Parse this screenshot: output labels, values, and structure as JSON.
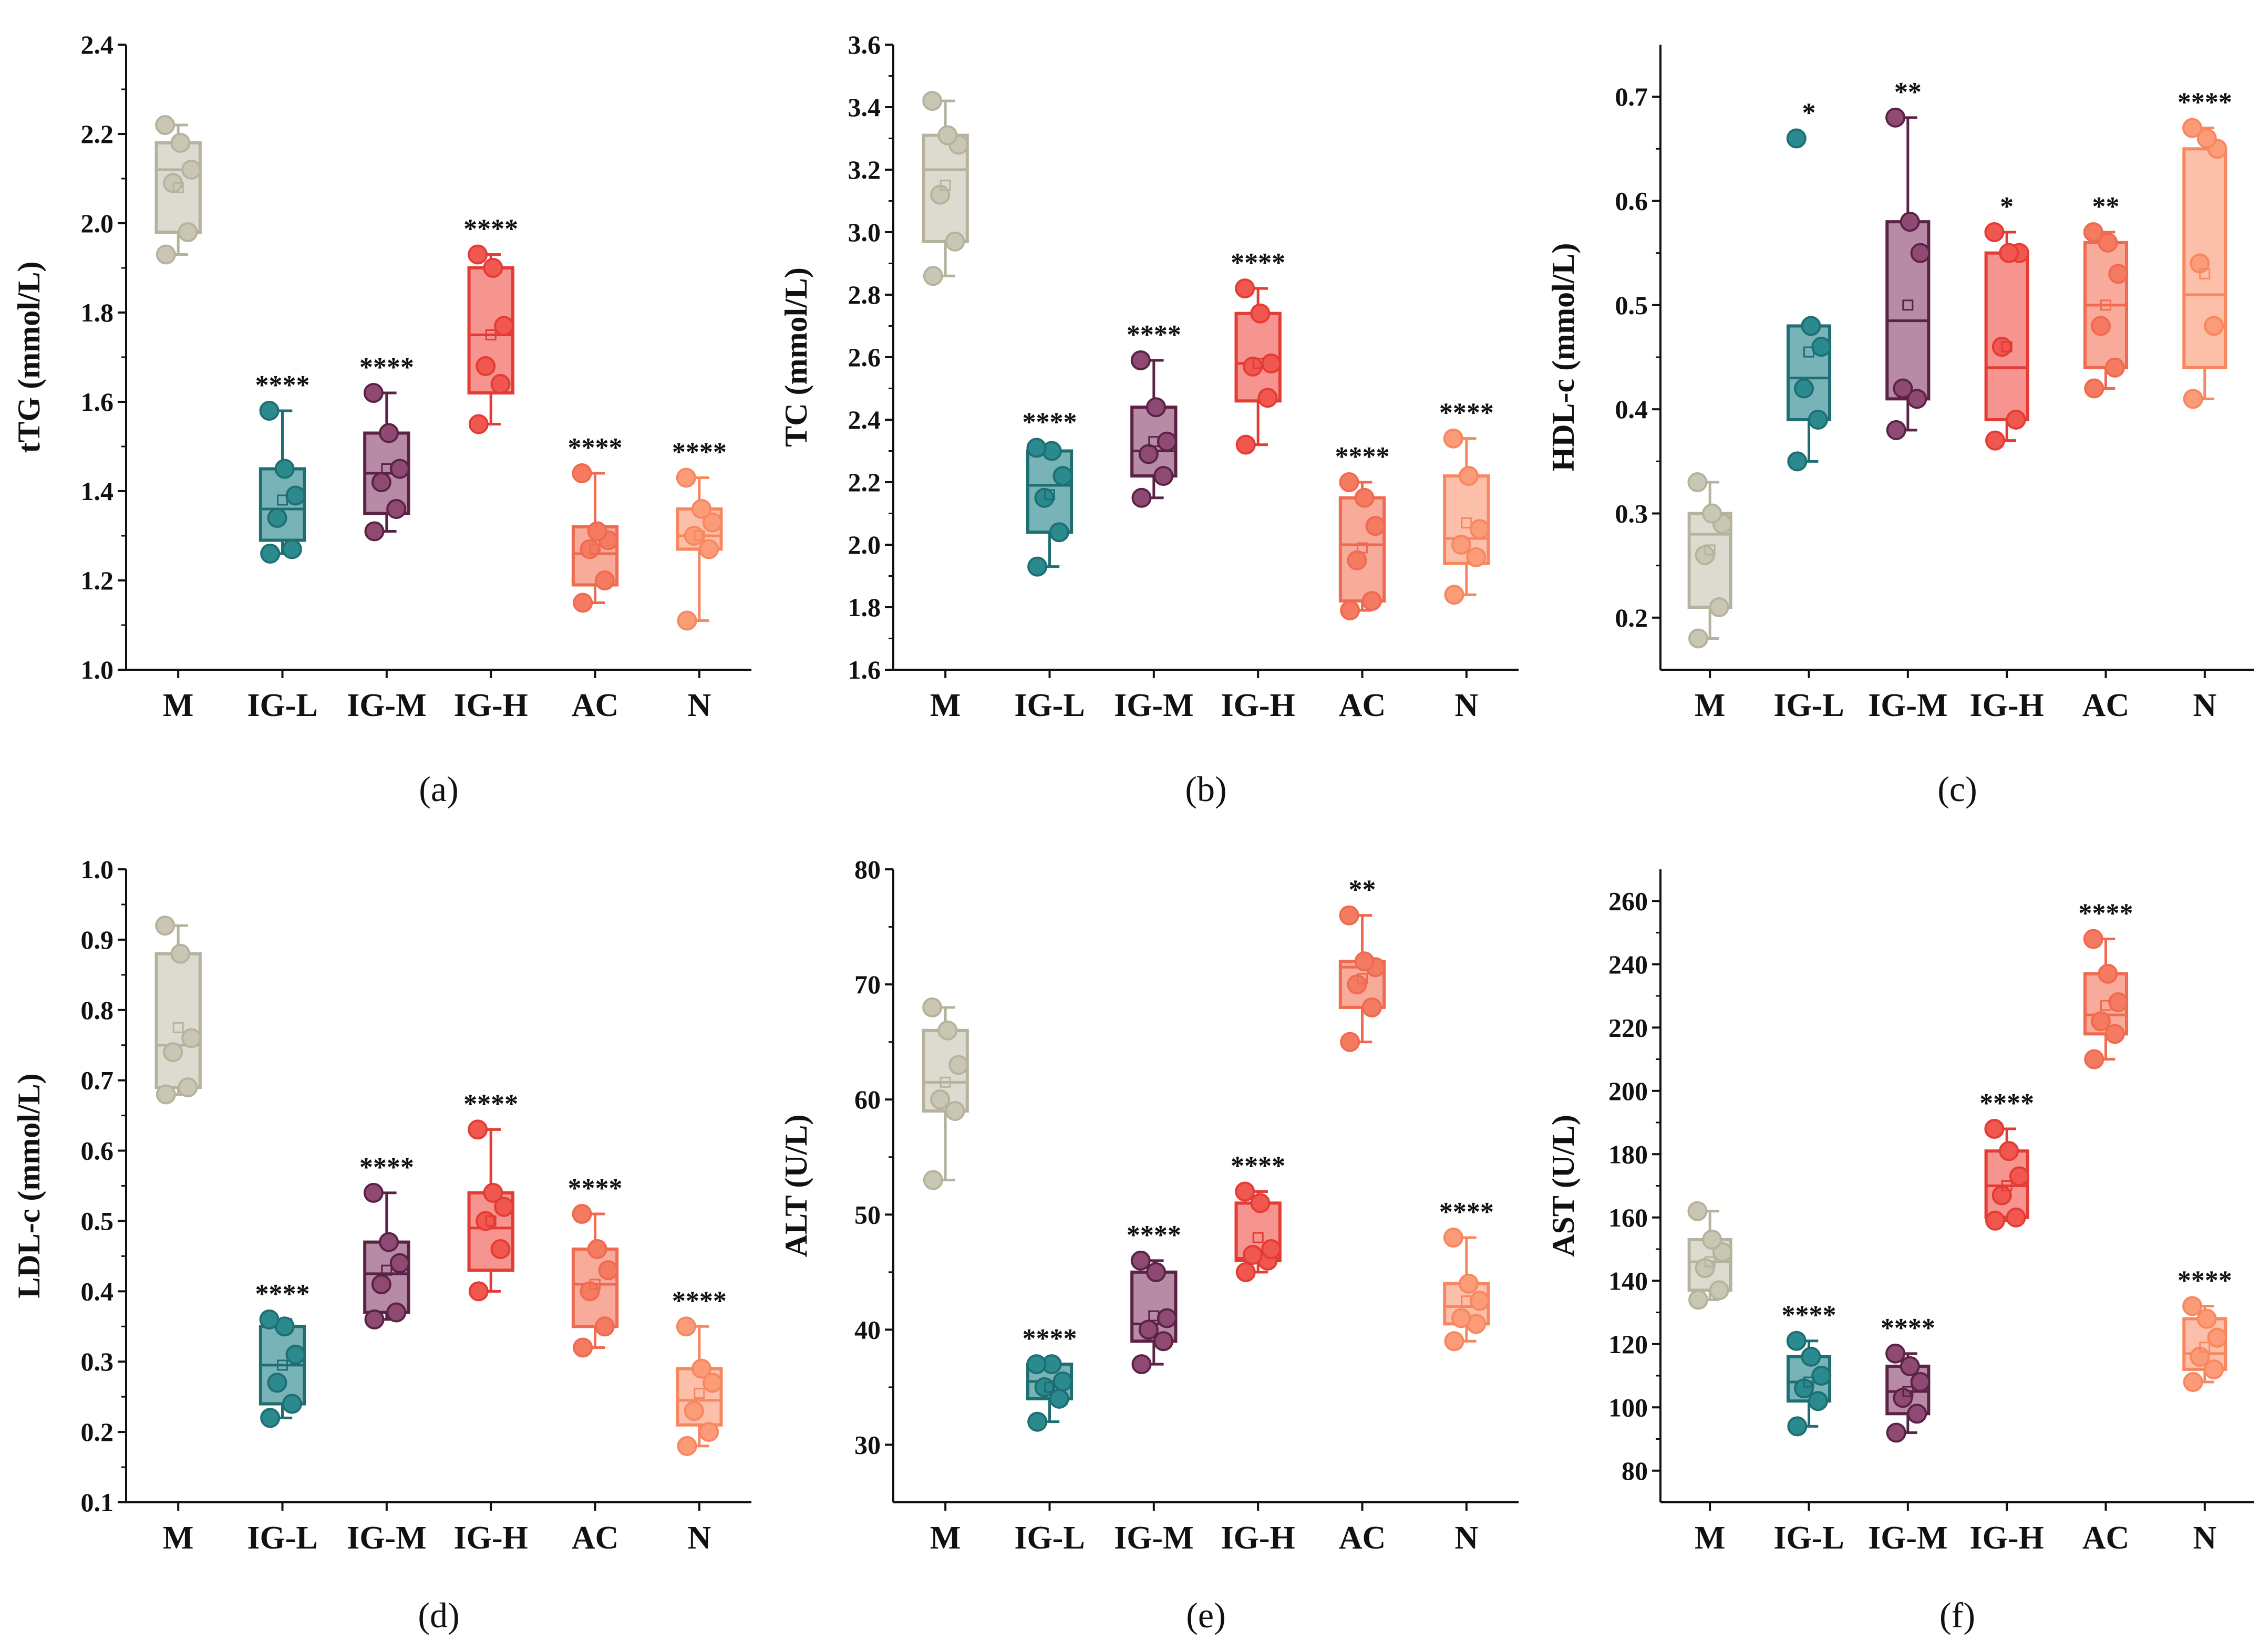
{
  "chart_data": [
    {
      "type": "box",
      "panel_label": "a",
      "caption": "(a)",
      "ylabel": "tTG (mmol/L)",
      "ylim": [
        1.0,
        2.4
      ],
      "yticks": [
        1.0,
        1.2,
        1.4,
        1.6,
        1.8,
        2.0,
        2.2,
        2.4
      ],
      "ytick_labels": [
        "1.0",
        "1.2",
        "1.4",
        "1.6",
        "1.8",
        "2.0",
        "2.2",
        "2.4"
      ],
      "categories": [
        "M",
        "IG-L",
        "IG-M",
        "IG-H",
        "AC",
        "N"
      ],
      "groups": [
        {
          "name": "M",
          "whisker_low": 1.93,
          "q1": 1.98,
          "median": 2.12,
          "q3": 2.18,
          "whisker_high": 2.22,
          "mean": 2.08,
          "points": [
            1.93,
            1.98,
            2.09,
            2.12,
            2.18,
            2.22
          ],
          "sig": ""
        },
        {
          "name": "IG-L",
          "whisker_low": 1.26,
          "q1": 1.29,
          "median": 1.36,
          "q3": 1.45,
          "whisker_high": 1.58,
          "mean": 1.38,
          "points": [
            1.26,
            1.27,
            1.34,
            1.39,
            1.45,
            1.58
          ],
          "sig": "****"
        },
        {
          "name": "IG-M",
          "whisker_low": 1.31,
          "q1": 1.35,
          "median": 1.44,
          "q3": 1.53,
          "whisker_high": 1.62,
          "mean": 1.45,
          "points": [
            1.31,
            1.36,
            1.42,
            1.45,
            1.53,
            1.62
          ],
          "sig": "****"
        },
        {
          "name": "IG-H",
          "whisker_low": 1.55,
          "q1": 1.62,
          "median": 1.75,
          "q3": 1.9,
          "whisker_high": 1.93,
          "mean": 1.75,
          "points": [
            1.55,
            1.64,
            1.68,
            1.77,
            1.9,
            1.93
          ],
          "sig": "****"
        },
        {
          "name": "AC",
          "whisker_low": 1.15,
          "q1": 1.19,
          "median": 1.26,
          "q3": 1.32,
          "whisker_high": 1.44,
          "mean": 1.27,
          "points": [
            1.15,
            1.2,
            1.27,
            1.29,
            1.31,
            1.44
          ],
          "sig": "****"
        },
        {
          "name": "N",
          "whisker_low": 1.11,
          "q1": 1.27,
          "median": 1.3,
          "q3": 1.36,
          "whisker_high": 1.43,
          "mean": 1.3,
          "points": [
            1.11,
            1.27,
            1.3,
            1.33,
            1.36,
            1.43
          ],
          "sig": "****"
        }
      ]
    },
    {
      "type": "box",
      "panel_label": "b",
      "caption": "(b)",
      "ylabel": "TC (mmol/L)",
      "ylim": [
        1.6,
        3.6
      ],
      "yticks": [
        1.6,
        1.8,
        2.0,
        2.2,
        2.4,
        2.6,
        2.8,
        3.0,
        3.2,
        3.4,
        3.6
      ],
      "ytick_labels": [
        "1.6",
        "1.8",
        "2.0",
        "2.2",
        "2.4",
        "2.6",
        "2.8",
        "3.0",
        "3.2",
        "3.4",
        "3.6"
      ],
      "categories": [
        "M",
        "IG-L",
        "IG-M",
        "IG-H",
        "AC",
        "N"
      ],
      "groups": [
        {
          "name": "M",
          "whisker_low": 2.86,
          "q1": 2.97,
          "median": 3.2,
          "q3": 3.31,
          "whisker_high": 3.42,
          "mean": 3.15,
          "points": [
            2.86,
            2.97,
            3.12,
            3.28,
            3.31,
            3.42
          ],
          "sig": ""
        },
        {
          "name": "IG-L",
          "whisker_low": 1.93,
          "q1": 2.04,
          "median": 2.19,
          "q3": 2.3,
          "whisker_high": 2.31,
          "mean": 2.16,
          "points": [
            1.93,
            2.04,
            2.15,
            2.22,
            2.3,
            2.31
          ],
          "sig": "****"
        },
        {
          "name": "IG-M",
          "whisker_low": 2.15,
          "q1": 2.22,
          "median": 2.3,
          "q3": 2.44,
          "whisker_high": 2.59,
          "mean": 2.33,
          "points": [
            2.15,
            2.22,
            2.29,
            2.33,
            2.44,
            2.59
          ],
          "sig": "****"
        },
        {
          "name": "IG-H",
          "whisker_low": 2.32,
          "q1": 2.46,
          "median": 2.58,
          "q3": 2.74,
          "whisker_high": 2.82,
          "mean": 2.58,
          "points": [
            2.32,
            2.47,
            2.57,
            2.58,
            2.74,
            2.82
          ],
          "sig": "****"
        },
        {
          "name": "AC",
          "whisker_low": 1.79,
          "q1": 1.82,
          "median": 2.0,
          "q3": 2.15,
          "whisker_high": 2.2,
          "mean": 1.99,
          "points": [
            1.79,
            1.82,
            1.95,
            2.06,
            2.15,
            2.2
          ],
          "sig": "****"
        },
        {
          "name": "N",
          "whisker_low": 1.84,
          "q1": 1.94,
          "median": 2.02,
          "q3": 2.22,
          "whisker_high": 2.34,
          "mean": 2.07,
          "points": [
            1.84,
            1.96,
            2.0,
            2.05,
            2.22,
            2.34
          ],
          "sig": "****"
        }
      ]
    },
    {
      "type": "box",
      "panel_label": "c",
      "caption": "(c)",
      "ylabel": "HDL-c (mmol/L)",
      "ylim": [
        0.15,
        0.75
      ],
      "yticks": [
        0.2,
        0.3,
        0.4,
        0.5,
        0.6,
        0.7
      ],
      "ytick_labels": [
        "0.2",
        "0.3",
        "0.4",
        "0.5",
        "0.6",
        "0.7"
      ],
      "categories": [
        "M",
        "IG-L",
        "IG-M",
        "IG-H",
        "AC",
        "N"
      ],
      "groups": [
        {
          "name": "M",
          "whisker_low": 0.18,
          "q1": 0.21,
          "median": 0.28,
          "q3": 0.3,
          "whisker_high": 0.33,
          "mean": 0.265,
          "points": [
            0.18,
            0.21,
            0.26,
            0.29,
            0.3,
            0.33
          ],
          "sig": ""
        },
        {
          "name": "IG-L",
          "whisker_low": 0.35,
          "q1": 0.39,
          "median": 0.43,
          "q3": 0.48,
          "whisker_high": 0.48,
          "mean": 0.455,
          "points": [
            0.35,
            0.39,
            0.42,
            0.46,
            0.48,
            0.66
          ],
          "sig": "*"
        },
        {
          "name": "IG-M",
          "whisker_low": 0.38,
          "q1": 0.41,
          "median": 0.485,
          "q3": 0.58,
          "whisker_high": 0.68,
          "mean": 0.5,
          "points": [
            0.38,
            0.41,
            0.42,
            0.55,
            0.58,
            0.68
          ],
          "sig": "**"
        },
        {
          "name": "IG-H",
          "whisker_low": 0.37,
          "q1": 0.39,
          "median": 0.44,
          "q3": 0.55,
          "whisker_high": 0.57,
          "mean": 0.46,
          "points": [
            0.37,
            0.39,
            0.46,
            0.55,
            0.55,
            0.57
          ],
          "sig": "*"
        },
        {
          "name": "AC",
          "whisker_low": 0.42,
          "q1": 0.44,
          "median": 0.5,
          "q3": 0.56,
          "whisker_high": 0.57,
          "mean": 0.5,
          "points": [
            0.42,
            0.44,
            0.48,
            0.53,
            0.56,
            0.57
          ],
          "sig": "**"
        },
        {
          "name": "N",
          "whisker_low": 0.41,
          "q1": 0.44,
          "median": 0.51,
          "q3": 0.65,
          "whisker_high": 0.67,
          "mean": 0.53,
          "points": [
            0.41,
            0.48,
            0.54,
            0.65,
            0.66,
            0.67
          ],
          "sig": "****"
        }
      ]
    },
    {
      "type": "box",
      "panel_label": "d",
      "caption": "(d)",
      "ylabel": "LDL-c (mmol/L)",
      "ylim": [
        0.1,
        1.0
      ],
      "yticks": [
        0.1,
        0.2,
        0.3,
        0.4,
        0.5,
        0.6,
        0.7,
        0.8,
        0.9,
        1.0
      ],
      "ytick_labels": [
        "0.1",
        "0.2",
        "0.3",
        "0.4",
        "0.5",
        "0.6",
        "0.7",
        "0.8",
        "0.9",
        "1.0"
      ],
      "categories": [
        "M",
        "IG-L",
        "IG-M",
        "IG-H",
        "AC",
        "N"
      ],
      "groups": [
        {
          "name": "M",
          "whisker_low": 0.68,
          "q1": 0.69,
          "median": 0.75,
          "q3": 0.88,
          "whisker_high": 0.92,
          "mean": 0.775,
          "points": [
            0.68,
            0.69,
            0.74,
            0.76,
            0.88,
            0.92
          ],
          "sig": ""
        },
        {
          "name": "IG-L",
          "whisker_low": 0.22,
          "q1": 0.24,
          "median": 0.295,
          "q3": 0.35,
          "whisker_high": 0.36,
          "mean": 0.295,
          "points": [
            0.22,
            0.24,
            0.27,
            0.31,
            0.35,
            0.36
          ],
          "sig": "****"
        },
        {
          "name": "IG-M",
          "whisker_low": 0.36,
          "q1": 0.37,
          "median": 0.425,
          "q3": 0.47,
          "whisker_high": 0.54,
          "mean": 0.43,
          "points": [
            0.36,
            0.37,
            0.41,
            0.44,
            0.47,
            0.54
          ],
          "sig": "****"
        },
        {
          "name": "IG-H",
          "whisker_low": 0.4,
          "q1": 0.43,
          "median": 0.49,
          "q3": 0.54,
          "whisker_high": 0.63,
          "mean": 0.5,
          "points": [
            0.4,
            0.46,
            0.5,
            0.52,
            0.54,
            0.63
          ],
          "sig": "****"
        },
        {
          "name": "AC",
          "whisker_low": 0.32,
          "q1": 0.35,
          "median": 0.41,
          "q3": 0.46,
          "whisker_high": 0.51,
          "mean": 0.41,
          "points": [
            0.32,
            0.35,
            0.4,
            0.43,
            0.46,
            0.51
          ],
          "sig": "****"
        },
        {
          "name": "N",
          "whisker_low": 0.18,
          "q1": 0.21,
          "median": 0.245,
          "q3": 0.29,
          "whisker_high": 0.35,
          "mean": 0.255,
          "points": [
            0.18,
            0.2,
            0.23,
            0.27,
            0.29,
            0.35
          ],
          "sig": "****"
        }
      ]
    },
    {
      "type": "box",
      "panel_label": "e",
      "caption": "(e)",
      "ylabel": "ALT (U/L)",
      "ylim": [
        25,
        80
      ],
      "yticks": [
        30,
        40,
        50,
        60,
        70,
        80
      ],
      "ytick_labels": [
        "30",
        "40",
        "50",
        "60",
        "70",
        "80"
      ],
      "categories": [
        "M",
        "IG-L",
        "IG-M",
        "IG-H",
        "AC",
        "N"
      ],
      "groups": [
        {
          "name": "M",
          "whisker_low": 53,
          "q1": 59,
          "median": 61.5,
          "q3": 66,
          "whisker_high": 68,
          "mean": 61.5,
          "points": [
            53,
            59,
            60,
            63,
            66,
            68
          ],
          "sig": ""
        },
        {
          "name": "IG-L",
          "whisker_low": 32,
          "q1": 34,
          "median": 35.5,
          "q3": 37,
          "whisker_high": 37,
          "mean": 35,
          "points": [
            32,
            34,
            35,
            35.5,
            37,
            37
          ],
          "sig": "****"
        },
        {
          "name": "IG-M",
          "whisker_low": 37,
          "q1": 39,
          "median": 40.5,
          "q3": 45,
          "whisker_high": 46,
          "mean": 41.2,
          "points": [
            37,
            39,
            40,
            41,
            45,
            46
          ],
          "sig": "****"
        },
        {
          "name": "IG-H",
          "whisker_low": 45,
          "q1": 46,
          "median": 46.2,
          "q3": 51,
          "whisker_high": 52,
          "mean": 48,
          "points": [
            45,
            46,
            46.5,
            47,
            51,
            52
          ],
          "sig": "****"
        },
        {
          "name": "AC",
          "whisker_low": 65,
          "q1": 68,
          "median": 71.5,
          "q3": 72,
          "whisker_high": 76,
          "mean": 70.5,
          "points": [
            65,
            68,
            70,
            71.5,
            72,
            76
          ],
          "sig": "**"
        },
        {
          "name": "N",
          "whisker_low": 39,
          "q1": 40.5,
          "median": 42,
          "q3": 44,
          "whisker_high": 48,
          "mean": 42.5,
          "points": [
            39,
            40.5,
            41,
            42.5,
            44,
            48
          ],
          "sig": "****"
        }
      ]
    },
    {
      "type": "box",
      "panel_label": "f",
      "caption": "(f)",
      "ylabel": "AST (U/L)",
      "ylim": [
        70,
        270
      ],
      "yticks": [
        80,
        100,
        120,
        140,
        160,
        180,
        200,
        220,
        240,
        260
      ],
      "ytick_labels": [
        "80",
        "100",
        "120",
        "140",
        "160",
        "180",
        "200",
        "220",
        "240",
        "260"
      ],
      "categories": [
        "M",
        "IG-L",
        "IG-M",
        "IG-H",
        "AC",
        "N"
      ],
      "groups": [
        {
          "name": "M",
          "whisker_low": 134,
          "q1": 137,
          "median": 146,
          "q3": 153,
          "whisker_high": 162,
          "mean": 146,
          "points": [
            134,
            137,
            144,
            149,
            153,
            162
          ],
          "sig": ""
        },
        {
          "name": "IG-L",
          "whisker_low": 94,
          "q1": 102,
          "median": 108,
          "q3": 116,
          "whisker_high": 121,
          "mean": 108,
          "points": [
            94,
            102,
            106,
            110,
            116,
            121
          ],
          "sig": "****"
        },
        {
          "name": "IG-M",
          "whisker_low": 92,
          "q1": 98,
          "median": 105,
          "q3": 113,
          "whisker_high": 117,
          "mean": 105,
          "points": [
            92,
            98,
            103,
            108,
            113,
            117
          ],
          "sig": "****"
        },
        {
          "name": "IG-H",
          "whisker_low": 159,
          "q1": 160,
          "median": 170,
          "q3": 181,
          "whisker_high": 188,
          "mean": 170,
          "points": [
            159,
            160,
            167,
            173,
            181,
            188
          ],
          "sig": "****"
        },
        {
          "name": "AC",
          "whisker_low": 210,
          "q1": 218,
          "median": 224,
          "q3": 237,
          "whisker_high": 248,
          "mean": 227,
          "points": [
            210,
            218,
            222,
            228,
            237,
            248
          ],
          "sig": "****"
        },
        {
          "name": "N",
          "whisker_low": 108,
          "q1": 112,
          "median": 117,
          "q3": 128,
          "whisker_high": 132,
          "mean": 119,
          "points": [
            108,
            112,
            116,
            122,
            128,
            132
          ],
          "sig": "****"
        }
      ]
    }
  ],
  "colors": {
    "M": "#c9c7b4",
    "IG-L": "#2b8a8e",
    "IG-M": "#8e4a72",
    "IG-H": "#f0584f",
    "AC": "#f47b61",
    "N": "#fb9b78"
  },
  "stroke_colors": {
    "M": "#b5b39e",
    "IG-L": "#1e6f73",
    "IG-M": "#5a2245",
    "IG-H": "#e43b34",
    "AC": "#ef6a4f",
    "N": "#f7875f"
  }
}
